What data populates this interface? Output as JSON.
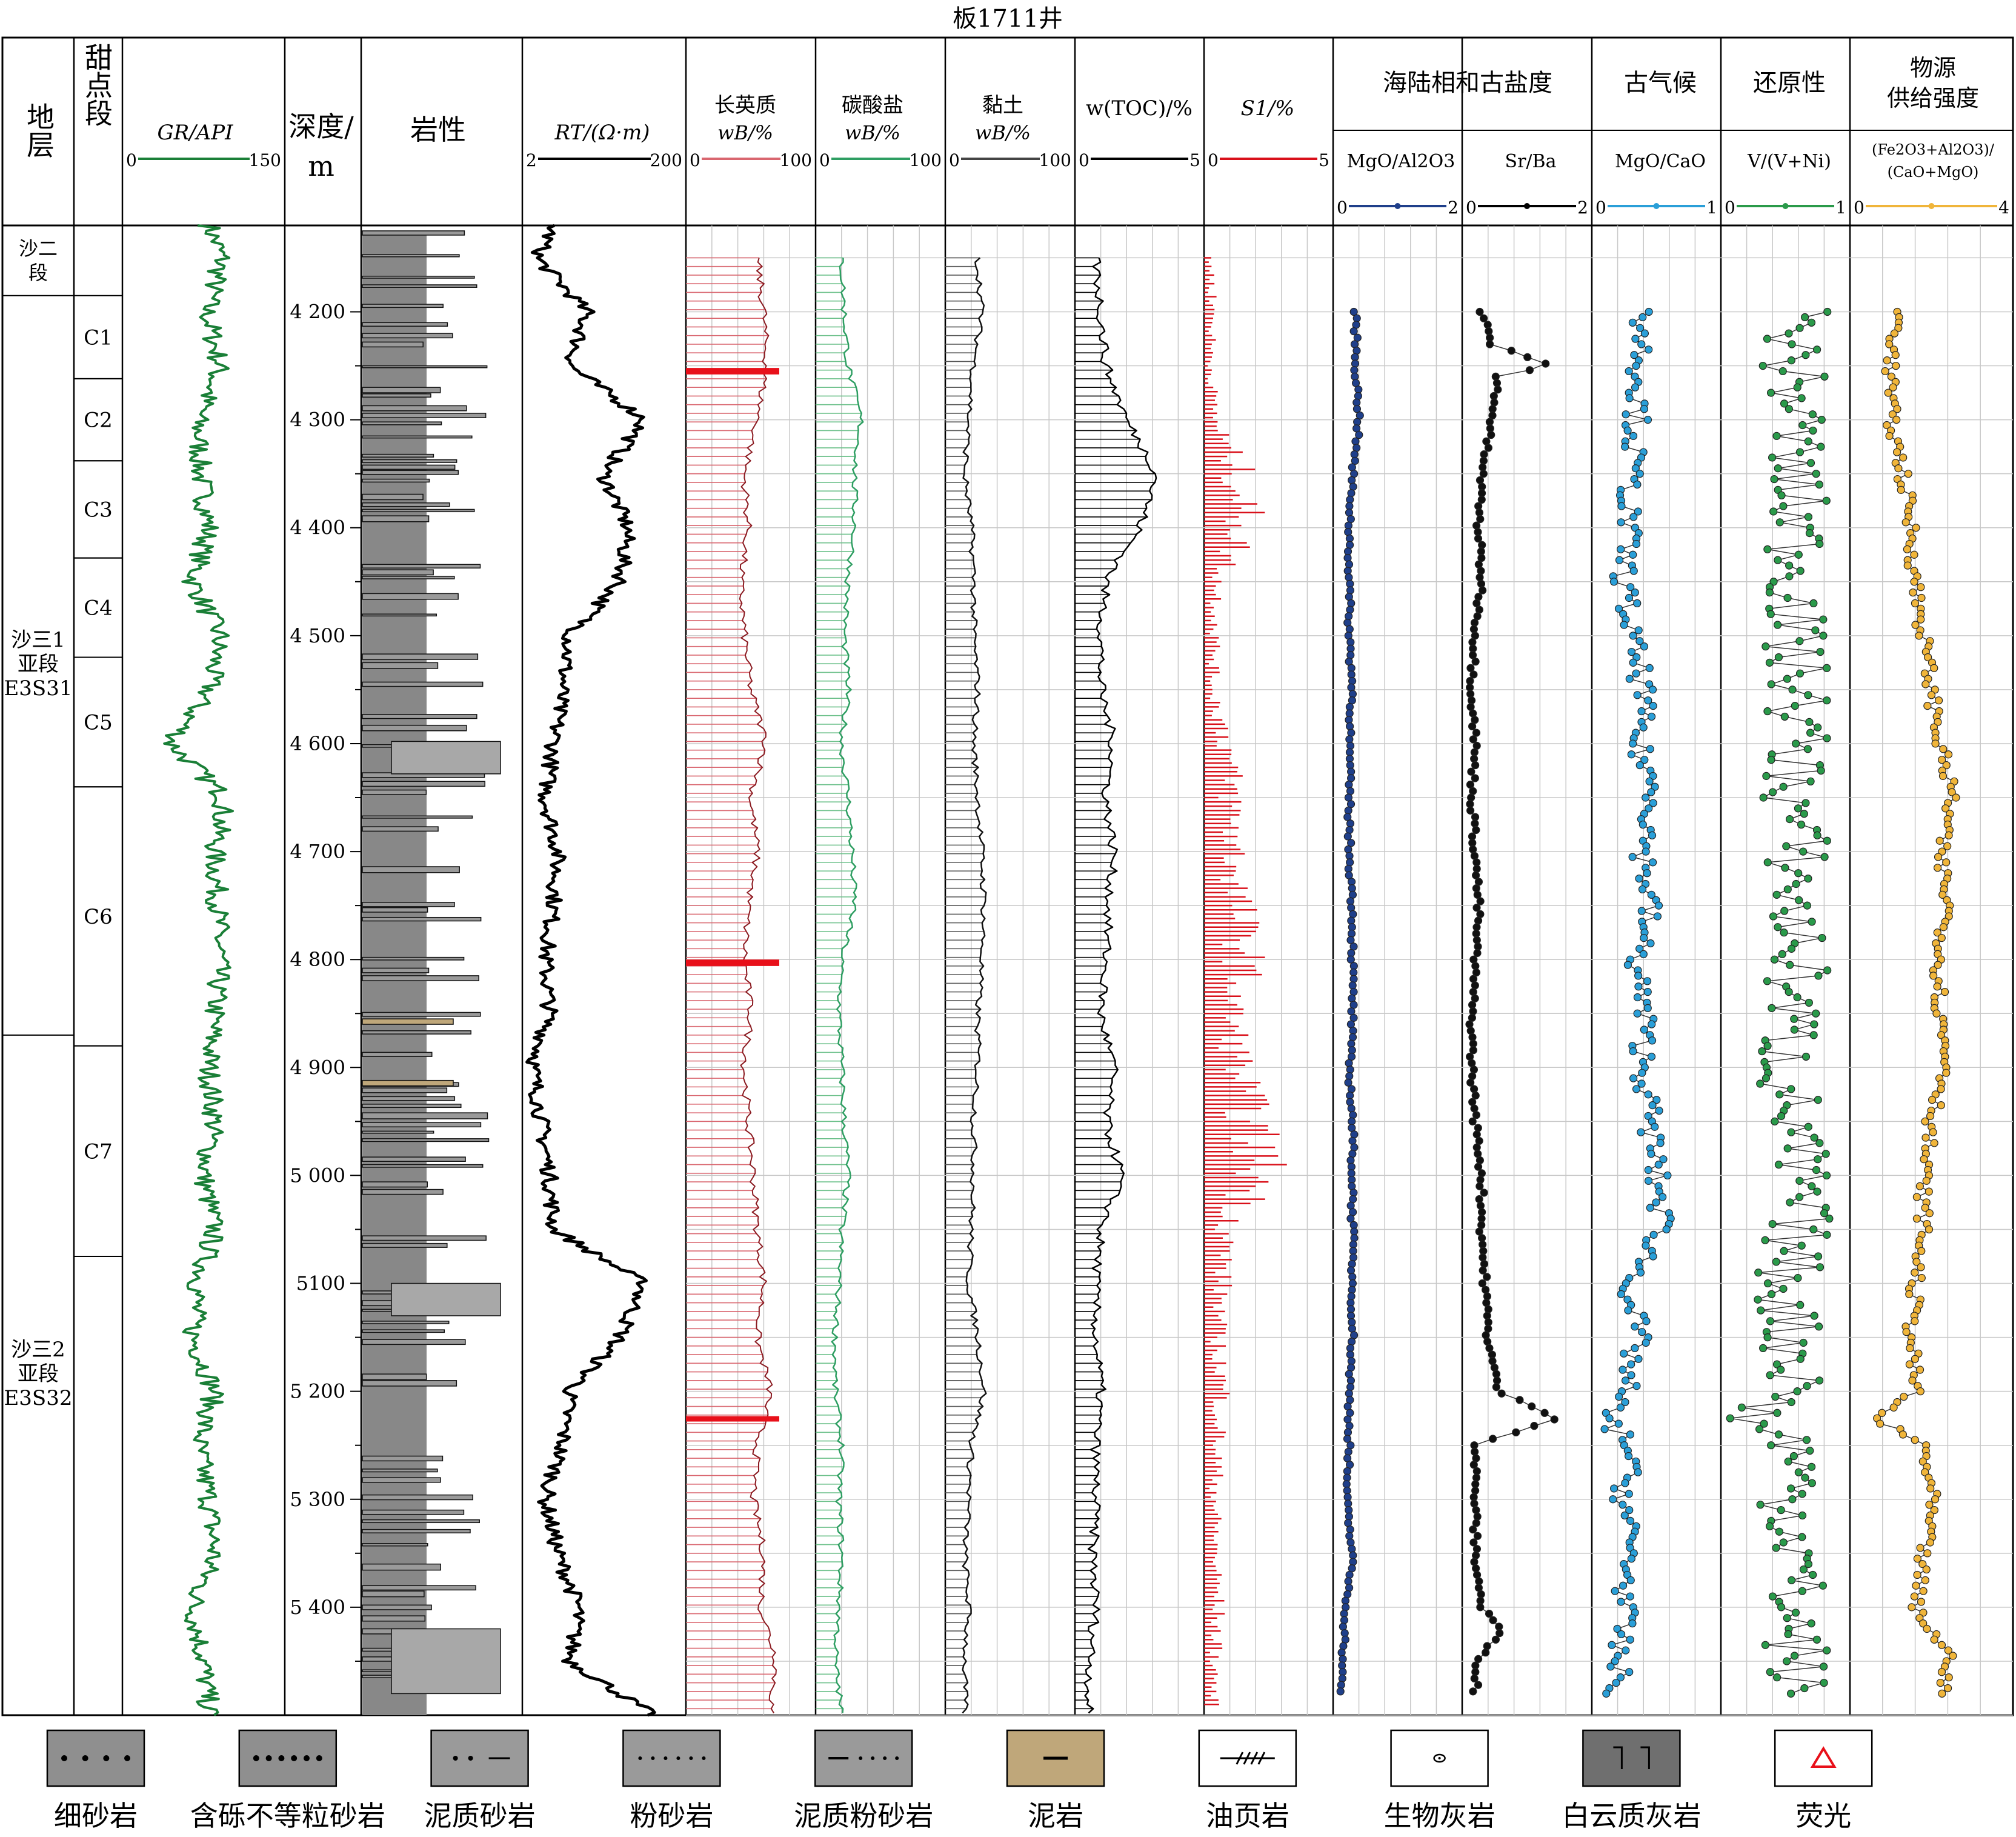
{
  "title": "板1711井",
  "headers": {
    "stratum": "地层",
    "sweet_spot": "甜点段",
    "gr": "GR/API",
    "depth_top": "深度/",
    "depth_bottom": "m",
    "lithology": "岩性",
    "rt": "RT/(Ω·m)",
    "felsic_top": "长英质",
    "carbonate_top": "碳酸盐",
    "clay_top": "黏土",
    "wb": "wB/%",
    "toc": "w(TOC)/%",
    "s1": "S1/%",
    "marine_group": "海陆相和古盐度",
    "mgo_al2o3": "MgO/Al2O3",
    "sr_ba": "Sr/Ba",
    "paleoclimate": "古气候",
    "mgo_cao": "MgO/CaO",
    "redox": "还原性",
    "v_vni": "V/(V+Ni)",
    "provenance_1": "物源",
    "provenance_2": "供给强度",
    "prov_ratio_1": "(Fe2O3+Al2O3)/",
    "prov_ratio_2": "(CaO+MgO)"
  },
  "scales": {
    "gr": [
      "0",
      "150"
    ],
    "rt": [
      "2",
      "200"
    ],
    "felsic": [
      "0",
      "100"
    ],
    "carbonate": [
      "0",
      "100"
    ],
    "clay": [
      "0",
      "100"
    ],
    "toc": [
      "0",
      "5"
    ],
    "s1": [
      "0",
      "5"
    ],
    "mgo_al2o3": [
      "0",
      "2"
    ],
    "sr_ba": [
      "0",
      "2"
    ],
    "mgo_cao": [
      "0",
      "1"
    ],
    "v_vni": [
      "0",
      "1"
    ],
    "prov": [
      "0",
      "4"
    ]
  },
  "strata": [
    {
      "name": "沙二段",
      "top": 4120,
      "bottom": 4185
    },
    {
      "name": "沙三1亚段 E3S31",
      "top": 4185,
      "bottom": 4870
    },
    {
      "name": "沙三2亚段 E3S32",
      "top": 4870,
      "bottom": 5500
    }
  ],
  "sweet_spots": [
    {
      "name": "C1",
      "top": 4185,
      "bottom": 4262
    },
    {
      "name": "C2",
      "top": 4262,
      "bottom": 4338
    },
    {
      "name": "C3",
      "top": 4338,
      "bottom": 4428
    },
    {
      "name": "C4",
      "top": 4428,
      "bottom": 4520
    },
    {
      "name": "C5",
      "top": 4520,
      "bottom": 4640
    },
    {
      "name": "C6",
      "top": 4640,
      "bottom": 4880
    },
    {
      "name": "C7",
      "top": 4880,
      "bottom": 5075
    }
  ],
  "depth_ticks": [
    "4 200",
    "4 300",
    "4 400",
    "4 500",
    "4 600",
    "4 700",
    "4 800",
    "4 900",
    "5 000",
    "5100",
    "5 200",
    "5 300",
    "5 400"
  ],
  "legend": [
    {
      "label": "细砂岩",
      "pattern": "dots-sparse",
      "fill": "#8f8f8f"
    },
    {
      "label": "含砾不等粒砂岩",
      "pattern": "dots-dense",
      "fill": "#8f8f8f"
    },
    {
      "label": "泥质砂岩",
      "pattern": "dot-dash",
      "fill": "#9a9a9a"
    },
    {
      "label": "粉砂岩",
      "pattern": "small-dots",
      "fill": "#9a9a9a"
    },
    {
      "label": "泥质粉砂岩",
      "pattern": "dash-dots",
      "fill": "#9a9a9a"
    },
    {
      "label": "泥岩",
      "pattern": "dash",
      "fill": "#bfa77a"
    },
    {
      "label": "油页岩",
      "pattern": "oil-shale",
      "fill": "#ffffff"
    },
    {
      "label": "生物灰岩",
      "pattern": "bio",
      "fill": "#ffffff"
    },
    {
      "label": "白云质灰岩",
      "pattern": "dolomite",
      "fill": "#6f6f6f"
    },
    {
      "label": "荧光",
      "pattern": "triangle",
      "fill": "#ffffff"
    }
  ],
  "colors": {
    "gr": "#1a7f37",
    "rt": "#000000",
    "felsic": "#d9666f",
    "felsic_hi": "#e8101a",
    "carbonate": "#2e9e62",
    "clay": "#444444",
    "toc": "#000000",
    "s1": "#d9101a",
    "mgo_al2o3": "#1f3f8a",
    "sr_ba": "#000000",
    "mgo_cao": "#2a9fd8",
    "v_vni": "#2a9a4a",
    "prov": "#f0b53a",
    "litho_base": "#888888"
  },
  "chart_data": {
    "type": "line",
    "depth_range": [
      4120,
      5500
    ],
    "depth_unit": "m",
    "series": [
      {
        "name": "GR/API",
        "range": [
          0,
          150
        ],
        "depth": [
          4120,
          4150,
          4200,
          4250,
          4300,
          4350,
          4400,
          4450,
          4500,
          4550,
          4600,
          4650,
          4700,
          4750,
          4800,
          4850,
          4900,
          4950,
          5000,
          5050,
          5100,
          5150,
          5200,
          5250,
          5300,
          5350,
          5400,
          5450,
          5500
        ],
        "values": [
          80,
          92,
          78,
          90,
          70,
          72,
          80,
          65,
          90,
          80,
          45,
          95,
          85,
          88,
          90,
          85,
          80,
          85,
          75,
          85,
          70,
          65,
          85,
          70,
          80,
          85,
          65,
          75,
          80
        ]
      },
      {
        "name": "RT/(Ω·m)",
        "range": [
          2,
          200
        ],
        "depth": [
          4120,
          4150,
          4200,
          4250,
          4300,
          4350,
          4400,
          4450,
          4500,
          4550,
          4600,
          4650,
          4700,
          4750,
          4800,
          4850,
          4900,
          4950,
          5000,
          5050,
          5100,
          5150,
          5200,
          5250,
          5300,
          5350,
          5400,
          5450,
          5500
        ],
        "values": [
          40,
          20,
          80,
          60,
          150,
          100,
          130,
          120,
          60,
          50,
          40,
          30,
          45,
          40,
          30,
          35,
          15,
          25,
          35,
          40,
          150,
          120,
          60,
          50,
          30,
          45,
          70,
          60,
          160
        ]
      },
      {
        "name": "长英质 wB/%",
        "range": [
          0,
          100
        ],
        "depth": [
          4150,
          4200,
          4250,
          4300,
          4350,
          4400,
          4450,
          4500,
          4550,
          4600,
          4650,
          4700,
          4750,
          4800,
          4850,
          4900,
          4950,
          5000,
          5050,
          5100,
          5150,
          5200,
          5250,
          5300,
          5350,
          5400,
          5450,
          5500
        ],
        "values": [
          55,
          60,
          62,
          55,
          45,
          48,
          42,
          45,
          50,
          62,
          50,
          55,
          48,
          45,
          50,
          45,
          48,
          52,
          55,
          60,
          55,
          65,
          55,
          52,
          60,
          58,
          70,
          65
        ]
      },
      {
        "name": "碳酸盐 wB/%",
        "range": [
          0,
          100
        ],
        "depth": [
          4150,
          4200,
          4250,
          4300,
          4350,
          4400,
          4450,
          4500,
          4550,
          4600,
          4650,
          4700,
          4750,
          4800,
          4850,
          4900,
          4950,
          5000,
          5050,
          5100,
          5150,
          5200,
          5250,
          5300,
          5350,
          5400,
          5450,
          5500
        ],
        "values": [
          20,
          22,
          25,
          35,
          30,
          30,
          25,
          22,
          25,
          20,
          25,
          28,
          30,
          20,
          18,
          20,
          22,
          25,
          20,
          18,
          15,
          15,
          20,
          18,
          20,
          18,
          15,
          20
        ]
      },
      {
        "name": "黏土 wB/%",
        "range": [
          0,
          100
        ],
        "depth": [
          4150,
          4200,
          4250,
          4300,
          4350,
          4400,
          4450,
          4500,
          4550,
          4600,
          4650,
          4700,
          4750,
          4800,
          4850,
          4900,
          4950,
          5000,
          5050,
          5100,
          5150,
          5200,
          5250,
          5300,
          5350,
          5400,
          5450,
          5500
        ],
        "values": [
          25,
          28,
          22,
          18,
          15,
          20,
          22,
          22,
          25,
          22,
          25,
          28,
          30,
          28,
          25,
          25,
          22,
          22,
          20,
          18,
          25,
          30,
          20,
          18,
          15,
          18,
          15,
          15
        ]
      },
      {
        "name": "w(TOC)/%",
        "range": [
          0,
          5
        ],
        "depth": [
          4150,
          4200,
          4250,
          4300,
          4350,
          4400,
          4450,
          4500,
          4550,
          4600,
          4650,
          4700,
          4750,
          4800,
          4850,
          4900,
          4950,
          5000,
          5050,
          5100,
          5150,
          5200,
          5250,
          5300,
          5350,
          5400,
          5450,
          5500
        ],
        "values": [
          0.8,
          1.0,
          1.2,
          2.0,
          3.2,
          2.5,
          1.2,
          1.0,
          1.0,
          1.5,
          1.2,
          1.5,
          1.3,
          1.2,
          1.0,
          1.5,
          1.2,
          1.8,
          1.0,
          0.8,
          0.8,
          1.0,
          0.8,
          0.8,
          0.7,
          0.8,
          0.6,
          0.5
        ]
      },
      {
        "name": "S1/%",
        "range": [
          0,
          5
        ],
        "depth": [
          4150,
          4200,
          4250,
          4300,
          4350,
          4400,
          4450,
          4500,
          4550,
          4600,
          4650,
          4700,
          4750,
          4800,
          4850,
          4900,
          4950,
          5000,
          5050,
          5100,
          5150,
          5200,
          5250,
          5300,
          5350,
          5400,
          5450,
          5500
        ],
        "values": [
          0.3,
          0.4,
          0.3,
          0.5,
          1.5,
          1.8,
          0.6,
          0.5,
          0.4,
          1.0,
          1.2,
          1.3,
          1.5,
          1.8,
          1.2,
          1.5,
          2.0,
          2.5,
          1.0,
          0.8,
          0.6,
          0.8,
          0.6,
          0.5,
          0.5,
          0.6,
          0.5,
          0.4
        ]
      },
      {
        "name": "MgO/Al2O3",
        "range": [
          0,
          2
        ],
        "depth": [
          4200,
          4250,
          4300,
          4350,
          4400,
          4450,
          4500,
          4550,
          4600,
          4650,
          4700,
          4750,
          4800,
          4850,
          4900,
          4950,
          5000,
          5050,
          5100,
          5150,
          5200,
          5250,
          5300,
          5350,
          5400,
          5450,
          5480
        ],
        "values": [
          0.35,
          0.35,
          0.4,
          0.3,
          0.25,
          0.25,
          0.25,
          0.3,
          0.25,
          0.25,
          0.25,
          0.3,
          0.3,
          0.3,
          0.25,
          0.3,
          0.3,
          0.3,
          0.3,
          0.3,
          0.25,
          0.25,
          0.2,
          0.3,
          0.2,
          0.15,
          0.1
        ]
      },
      {
        "name": "Sr/Ba",
        "range": [
          0,
          2
        ],
        "depth": [
          4200,
          4230,
          4250,
          4260,
          4270,
          4300,
          4350,
          4400,
          4450,
          4500,
          4550,
          4600,
          4650,
          4700,
          4750,
          4800,
          4850,
          4900,
          4950,
          5000,
          5050,
          5100,
          5150,
          5200,
          5225,
          5250,
          5300,
          5350,
          5400,
          5420,
          5450,
          5480
        ],
        "values": [
          0.3,
          0.45,
          1.4,
          0.5,
          0.55,
          0.45,
          0.3,
          0.25,
          0.3,
          0.2,
          0.15,
          0.2,
          0.15,
          0.2,
          0.25,
          0.2,
          0.15,
          0.15,
          0.2,
          0.3,
          0.3,
          0.35,
          0.4,
          0.55,
          1.5,
          0.2,
          0.2,
          0.2,
          0.3,
          0.6,
          0.25,
          0.2
        ]
      },
      {
        "name": "MgO/CaO",
        "range": [
          0,
          1
        ],
        "depth": [
          4200,
          4250,
          4300,
          4350,
          4400,
          4450,
          4500,
          4550,
          4600,
          4650,
          4700,
          4750,
          4800,
          4850,
          4900,
          4950,
          5000,
          5050,
          5100,
          5150,
          5200,
          5225,
          5250,
          5300,
          5350,
          5400,
          5450,
          5480
        ],
        "values": [
          0.4,
          0.38,
          0.35,
          0.3,
          0.28,
          0.25,
          0.3,
          0.4,
          0.35,
          0.5,
          0.4,
          0.45,
          0.35,
          0.4,
          0.4,
          0.45,
          0.5,
          0.55,
          0.3,
          0.35,
          0.25,
          0.1,
          0.3,
          0.25,
          0.3,
          0.25,
          0.2,
          0.2
        ]
      },
      {
        "name": "V/(V+Ni)",
        "range": [
          0,
          1
        ],
        "depth": [
          4200,
          4250,
          4300,
          4350,
          4400,
          4450,
          4500,
          4550,
          4600,
          4650,
          4700,
          4750,
          4800,
          4850,
          4900,
          4950,
          5000,
          5050,
          5100,
          5150,
          5200,
          5225,
          5250,
          5300,
          5350,
          5400,
          5450,
          5480
        ],
        "values": [
          0.6,
          0.55,
          0.6,
          0.55,
          0.6,
          0.6,
          0.55,
          0.6,
          0.6,
          0.55,
          0.6,
          0.55,
          0.6,
          0.55,
          0.5,
          0.55,
          0.6,
          0.6,
          0.5,
          0.55,
          0.6,
          0.2,
          0.6,
          0.55,
          0.6,
          0.55,
          0.6,
          0.55
        ]
      },
      {
        "name": "(Fe2O3+Al2O3)/(CaO+MgO)",
        "range": [
          0,
          4
        ],
        "depth": [
          4200,
          4250,
          4300,
          4350,
          4400,
          4450,
          4500,
          4550,
          4600,
          4650,
          4700,
          4750,
          4800,
          4850,
          4900,
          4950,
          5000,
          5050,
          5100,
          5150,
          5200,
          5225,
          5250,
          5300,
          5350,
          5400,
          5450,
          5480
        ],
        "values": [
          1.2,
          1.0,
          1.0,
          1.3,
          1.5,
          1.6,
          1.8,
          2.0,
          2.2,
          2.5,
          2.2,
          2.4,
          2.2,
          2.2,
          2.4,
          2.0,
          1.8,
          1.8,
          1.6,
          1.5,
          1.6,
          0.6,
          1.8,
          2.0,
          1.8,
          1.6,
          2.5,
          2.2
        ]
      }
    ]
  }
}
